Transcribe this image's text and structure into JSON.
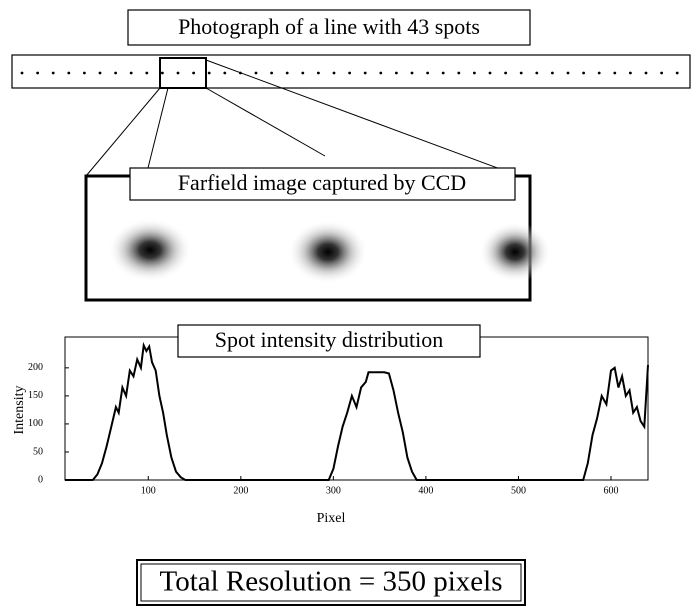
{
  "photo": {
    "label": "Photograph of a line with 43 spots"
  },
  "farfield": {
    "label": "Farfield image captured by CCD"
  },
  "chart_data": {
    "type": "line",
    "title": "Spot intensity distribution",
    "x_label": "Pixel",
    "y_label": "Intensity",
    "color": "#000000",
    "x": [
      10,
      40,
      45,
      50,
      55,
      60,
      65,
      68,
      72,
      76,
      80,
      84,
      88,
      92,
      95,
      98,
      101,
      104,
      108,
      112,
      116,
      120,
      125,
      130,
      135,
      140,
      295,
      300,
      305,
      310,
      315,
      320,
      325,
      330,
      335,
      338,
      345,
      355,
      360,
      365,
      370,
      375,
      380,
      385,
      390,
      570,
      575,
      580,
      585,
      590,
      595,
      600,
      604,
      608,
      612,
      616,
      620,
      624,
      628,
      632,
      636,
      640
    ],
    "values": [
      0,
      0,
      10,
      30,
      60,
      95,
      130,
      120,
      165,
      150,
      195,
      185,
      215,
      200,
      240,
      230,
      238,
      210,
      195,
      150,
      120,
      80,
      40,
      15,
      5,
      0,
      0,
      20,
      60,
      95,
      120,
      150,
      130,
      165,
      175,
      192,
      192,
      192,
      190,
      160,
      120,
      85,
      40,
      15,
      0,
      0,
      30,
      80,
      110,
      150,
      135,
      195,
      200,
      165,
      185,
      150,
      160,
      120,
      130,
      105,
      95,
      205
    ],
    "xlim": [
      10,
      640
    ],
    "ylim": [
      0,
      255
    ],
    "xticks": [
      100,
      200,
      300,
      400,
      500,
      600
    ],
    "yticks": [
      0,
      50,
      100,
      150,
      200
    ]
  },
  "footer": {
    "text": "Total Resolution = 350 pixels"
  }
}
